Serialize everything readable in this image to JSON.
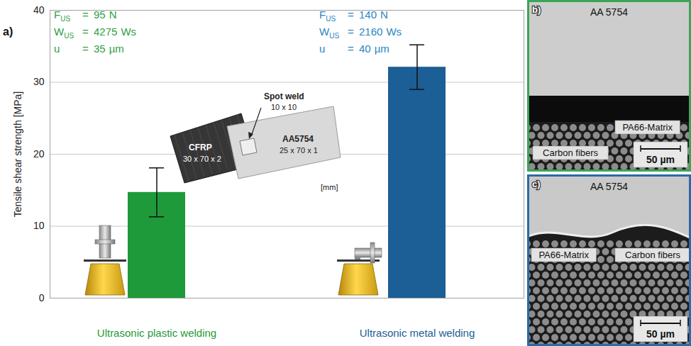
{
  "chart_data": {
    "type": "bar",
    "panel_label": "a)",
    "y_label": "Tensile shear strength [MPa]",
    "categories": [
      "Ultrasonic plastic welding",
      "Ultrasonic metal welding"
    ],
    "values": [
      14.7,
      32.1
    ],
    "errors": [
      3.4,
      3.1
    ],
    "colors": [
      "#1f9a3a",
      "#1c5e96"
    ],
    "ylim": [
      0,
      40
    ],
    "yticks": [
      0,
      10,
      20,
      30,
      40
    ],
    "grid": true,
    "annotations": [
      {
        "color": "#2ea043",
        "lines": [
          {
            "symbol": "F",
            "subscript": "US",
            "sign": "=",
            "value": 95,
            "unit": "N"
          },
          {
            "symbol": "W",
            "subscript": "US",
            "sign": "=",
            "value": 4275,
            "unit": "Ws"
          },
          {
            "symbol": "u",
            "sign": "=",
            "value": 35,
            "unit": "µm"
          }
        ]
      },
      {
        "color": "#2a86c0",
        "lines": [
          {
            "symbol": "F",
            "subscript": "US",
            "sign": "=",
            "value": 140,
            "unit": "N"
          },
          {
            "symbol": "W",
            "subscript": "US",
            "sign": "=",
            "value": 2160,
            "unit": "Ws"
          },
          {
            "symbol": "u",
            "sign": "=",
            "value": 40,
            "unit": "µm"
          }
        ]
      }
    ],
    "specimen": {
      "cfrp": "CFRP",
      "cfrp_size": "30 x 70 x 2",
      "spot_weld": "Spot weld",
      "spot_size": "10 x 10",
      "aluminium": "AA5754",
      "aluminium_size": "25 x 70 x 1",
      "unit": "[mm]"
    }
  },
  "micrographs": [
    {
      "panel_label": "b)",
      "color": "#3aa655",
      "metal": "AA 5754",
      "matrix": "PA66-Matrix",
      "fibers": "Carbon fibers",
      "scale_bar": "50 µm"
    },
    {
      "panel_label": "c)",
      "color": "#2a6aa8",
      "metal": "AA 5754",
      "matrix": "PA66-Matrix",
      "fibers": "Carbon fibers",
      "scale_bar": "50 µm"
    }
  ]
}
